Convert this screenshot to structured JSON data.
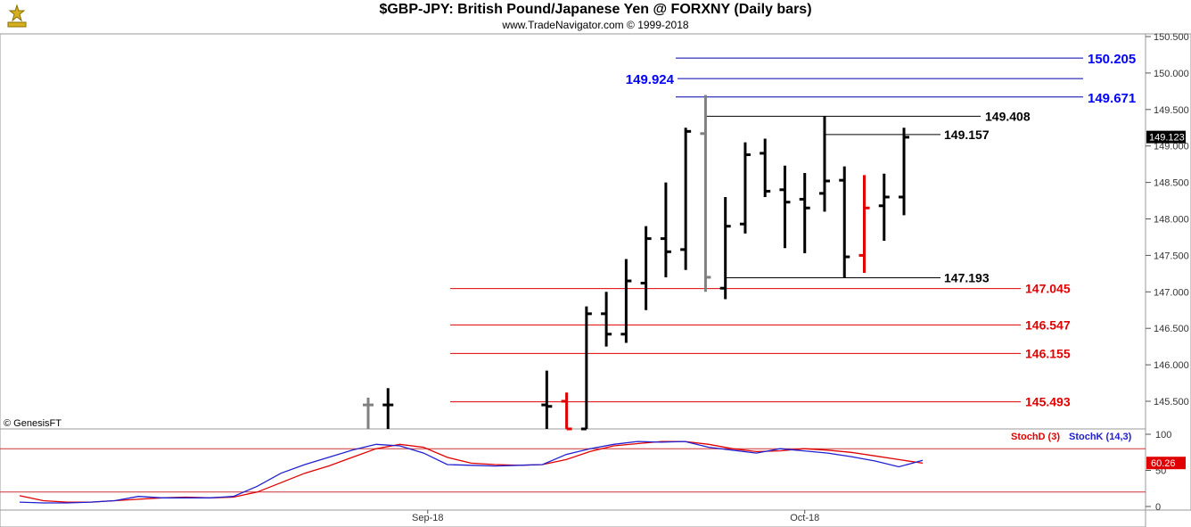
{
  "header": {
    "title": "$GBP-JPY:  British Pound/Japanese Yen @ FORXNY  (Daily bars)",
    "subtitle": "www.TradeNavigator.com © 1999-2018"
  },
  "copyright": "© GenesisFT",
  "chart_data": [
    {
      "type": "ohlc",
      "ylim": [
        145.0,
        150.6
      ],
      "y_ticks": [
        "150.500",
        "150.000",
        "149.500",
        "149.000",
        "148.500",
        "148.000",
        "147.500",
        "147.000",
        "146.500",
        "146.000",
        "145.500"
      ],
      "y_tick_values": [
        150.5,
        150.0,
        149.5,
        149.0,
        148.5,
        148.0,
        147.5,
        147.0,
        146.5,
        146.0,
        145.5
      ],
      "x_labels": [
        {
          "label": "Sep-18",
          "bar": 3
        },
        {
          "label": "Oct-18",
          "bar": 22
        }
      ],
      "last_price": "149.123",
      "bars": [
        {
          "i": 0,
          "o": 145.45,
          "h": 145.55,
          "l": 145.0,
          "c": 145.45,
          "color": "#808080"
        },
        {
          "i": 1,
          "o": 145.45,
          "h": 145.68,
          "l": 145.0,
          "c": 145.45,
          "color": "#000000"
        },
        {
          "i": 9,
          "o": 145.45,
          "h": 145.92,
          "l": 145.0,
          "c": 145.43,
          "color": "#000000"
        },
        {
          "i": 10,
          "o": 145.5,
          "h": 145.62,
          "l": 145.0,
          "c": 145.0,
          "color": "#e00000"
        },
        {
          "i": 11,
          "o": 145.0,
          "h": 146.8,
          "l": 145.0,
          "c": 146.7,
          "color": "#000000"
        },
        {
          "i": 12,
          "o": 146.7,
          "h": 147.0,
          "l": 146.25,
          "c": 146.42,
          "color": "#000000"
        },
        {
          "i": 13,
          "o": 146.42,
          "h": 147.45,
          "l": 146.3,
          "c": 147.15,
          "color": "#000000"
        },
        {
          "i": 14,
          "o": 147.12,
          "h": 147.9,
          "l": 146.75,
          "c": 147.73,
          "color": "#000000"
        },
        {
          "i": 15,
          "o": 147.73,
          "h": 148.5,
          "l": 147.2,
          "c": 147.55,
          "color": "#000000"
        },
        {
          "i": 16,
          "o": 147.58,
          "h": 149.25,
          "l": 147.3,
          "c": 149.2,
          "color": "#000000"
        },
        {
          "i": 17,
          "o": 149.17,
          "h": 149.7,
          "l": 147.0,
          "c": 147.2,
          "color": "#808080"
        },
        {
          "i": 18,
          "o": 147.05,
          "h": 148.3,
          "l": 146.9,
          "c": 147.9,
          "color": "#000000"
        },
        {
          "i": 19,
          "o": 147.93,
          "h": 149.05,
          "l": 147.8,
          "c": 148.88,
          "color": "#000000"
        },
        {
          "i": 20,
          "o": 148.9,
          "h": 149.1,
          "l": 148.3,
          "c": 148.38,
          "color": "#000000"
        },
        {
          "i": 21,
          "o": 148.4,
          "h": 148.73,
          "l": 147.6,
          "c": 148.23,
          "color": "#000000"
        },
        {
          "i": 22,
          "o": 148.27,
          "h": 148.63,
          "l": 147.53,
          "c": 148.15,
          "color": "#000000"
        },
        {
          "i": 23,
          "o": 148.35,
          "h": 149.41,
          "l": 148.1,
          "c": 148.52,
          "color": "#000000"
        },
        {
          "i": 24,
          "o": 148.53,
          "h": 148.72,
          "l": 147.2,
          "c": 147.48,
          "color": "#000000"
        },
        {
          "i": 25,
          "o": 147.5,
          "h": 148.6,
          "l": 147.26,
          "c": 148.15,
          "color": "#e00000"
        },
        {
          "i": 26,
          "o": 148.18,
          "h": 148.62,
          "l": 147.7,
          "c": 148.3,
          "color": "#000000"
        },
        {
          "i": 27,
          "o": 148.3,
          "h": 149.25,
          "l": 148.05,
          "c": 149.12,
          "color": "#000000"
        }
      ],
      "levels_blue_left": [
        {
          "value": 149.924,
          "label": "149.924"
        }
      ],
      "levels_blue_right": [
        {
          "value": 150.205,
          "label": "150.205"
        },
        {
          "value": 149.671,
          "label": "149.671"
        }
      ],
      "levels_black": [
        {
          "value": 149.408,
          "label": "149.408",
          "from_bar": 17
        },
        {
          "value": 149.157,
          "label": "149.157",
          "from_bar": 23
        },
        {
          "value": 147.193,
          "label": "147.193",
          "from_bar": 18
        }
      ],
      "levels_red": [
        {
          "value": 147.045,
          "label": "147.045"
        },
        {
          "value": 146.547,
          "label": "146.547"
        },
        {
          "value": 146.155,
          "label": "146.155"
        },
        {
          "value": 145.493,
          "label": "145.493"
        }
      ]
    },
    {
      "type": "line",
      "indicator": true,
      "ylim": [
        0,
        100
      ],
      "y_ticks": [
        "100",
        "50",
        "0"
      ],
      "y_tick_values": [
        100,
        50,
        0
      ],
      "band_levels": [
        80,
        20
      ],
      "last_value": "60.26",
      "series": [
        {
          "name": "StochD (3)",
          "color": "#e00000",
          "values": [
            15,
            8,
            6,
            6,
            8,
            10,
            12,
            13,
            12,
            13,
            20,
            33,
            46,
            56,
            68,
            80,
            86,
            82,
            68,
            60,
            58,
            57,
            58,
            65,
            76,
            84,
            87,
            90,
            90,
            86,
            80,
            76,
            77,
            80,
            78,
            75,
            70,
            65,
            60
          ]
        },
        {
          "name": "StochK (14,3)",
          "color": "#2020d0",
          "values": [
            6,
            5,
            5,
            6,
            8,
            14,
            12,
            12,
            12,
            14,
            28,
            46,
            58,
            68,
            78,
            86,
            84,
            74,
            58,
            57,
            56,
            57,
            58,
            72,
            80,
            86,
            90,
            89,
            90,
            82,
            78,
            74,
            80,
            77,
            74,
            69,
            63,
            55,
            64
          ]
        }
      ]
    }
  ]
}
